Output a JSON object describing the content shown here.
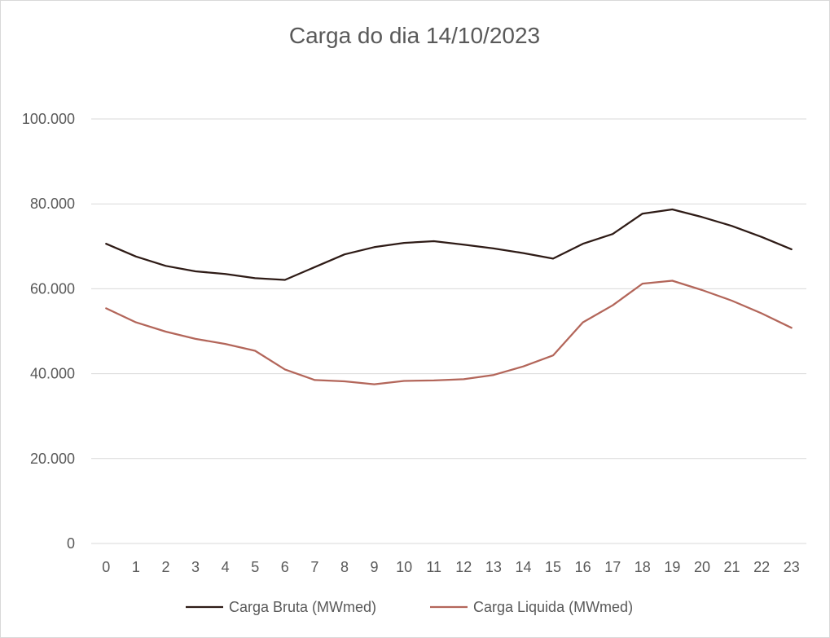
{
  "chart_data": {
    "type": "line",
    "title": "Carga do dia 14/10/2023",
    "xlabel": "",
    "ylabel": "",
    "x": [
      0,
      1,
      2,
      3,
      4,
      5,
      6,
      7,
      8,
      9,
      10,
      11,
      12,
      13,
      14,
      15,
      16,
      17,
      18,
      19,
      20,
      21,
      22,
      23
    ],
    "ylim": [
      0,
      100000
    ],
    "yticks": [
      0,
      20000,
      40000,
      60000,
      80000,
      100000
    ],
    "ytick_labels": [
      "0",
      "20.000",
      "40.000",
      "60.000",
      "80.000",
      "100.000"
    ],
    "grid": true,
    "legend_position": "bottom",
    "series": [
      {
        "name": "Carga Bruta (MWmed)",
        "color": "#2e1b16",
        "values": [
          70600,
          67600,
          65400,
          64100,
          63500,
          62500,
          62100,
          65100,
          68100,
          69800,
          70800,
          71200,
          70400,
          69500,
          68400,
          67100,
          70600,
          72900,
          77700,
          78700,
          76900,
          74800,
          72200,
          69300
        ]
      },
      {
        "name": "Carga Liquida (MWmed)",
        "color": "#b3665a",
        "values": [
          55400,
          52100,
          49900,
          48200,
          47000,
          45400,
          41000,
          38500,
          38200,
          37500,
          38300,
          38400,
          38700,
          39700,
          41700,
          44300,
          52100,
          56100,
          61200,
          61900,
          59700,
          57200,
          54200,
          50800
        ]
      }
    ]
  }
}
